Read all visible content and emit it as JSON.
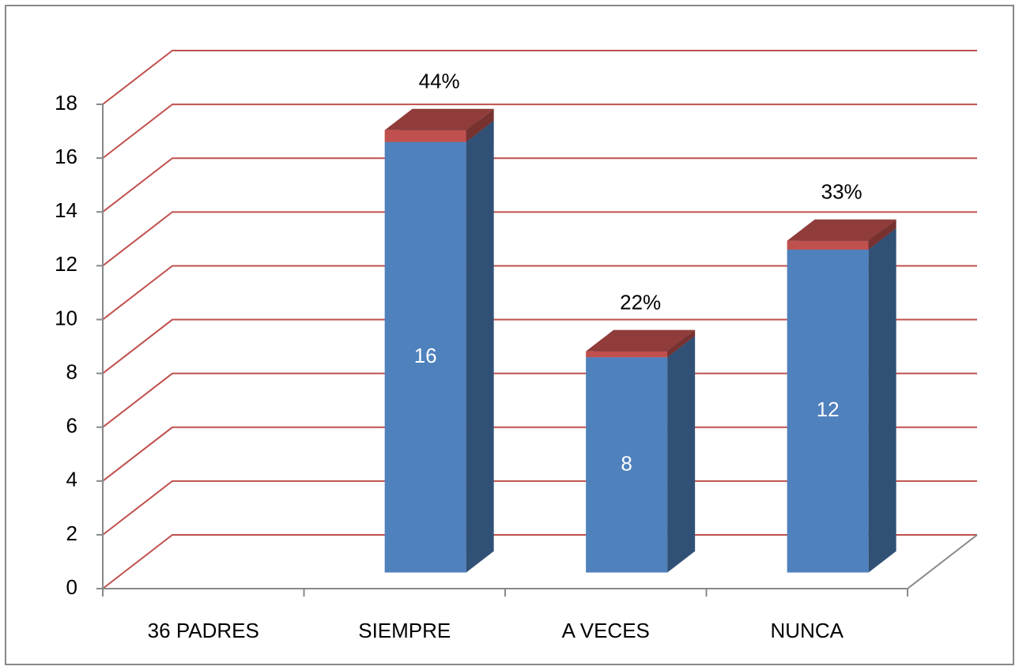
{
  "chart_data": {
    "type": "bar3d_stacked",
    "categories": [
      "36 PADRES",
      "SIEMPRE",
      "A VECES",
      "NUNCA"
    ],
    "series": [
      {
        "color": "#4f81bd",
        "values": [
          null,
          16,
          8,
          12
        ]
      },
      {
        "color": "#c0504d",
        "values": [
          null,
          0.44,
          0.22,
          0.33
        ],
        "value_labels": [
          null,
          "44%",
          "22%",
          "33%"
        ]
      }
    ],
    "ylim": [
      0,
      18
    ],
    "yticks": [
      0,
      2,
      4,
      6,
      8,
      10,
      12,
      14,
      16,
      18
    ],
    "grid": true,
    "grid_color": "#c0504d"
  }
}
